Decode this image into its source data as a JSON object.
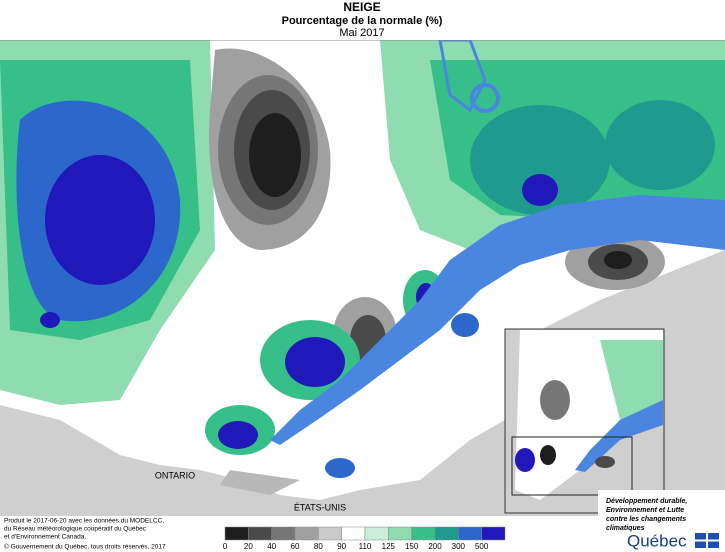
{
  "header": {
    "title": "NEIGE",
    "subtitle": "Pourcentage de la normale (%)",
    "period": "Mai 2017"
  },
  "map": {
    "labels": [
      "ONTARIO",
      "ÉTATS-UNIS"
    ]
  },
  "legend": {
    "ticks": [
      0,
      20,
      40,
      60,
      80,
      90,
      110,
      125,
      150,
      200,
      300,
      500
    ],
    "colors": [
      "#1e1e1e",
      "#4a4a4a",
      "#767676",
      "#a0a0a0",
      "#cacaca",
      "#ffffff",
      "#c9efd8",
      "#8edcaf",
      "#37bf8a",
      "#1f9a8e",
      "#2c67cc",
      "#2018b8"
    ]
  },
  "footer": {
    "credits": [
      "Produit le 2017-06-20 avec les données du MODELCC,",
      "du Réseau météorologique coopératif du Québec",
      "et d'Environnement Canada."
    ],
    "copyright": "© Gouvernement du Québec, tous droits réservés, 2017",
    "ministry": [
      "Développement durable,",
      "Environnement et Lutte",
      "contre les changements",
      "climatiques"
    ],
    "brand": "Québec"
  }
}
